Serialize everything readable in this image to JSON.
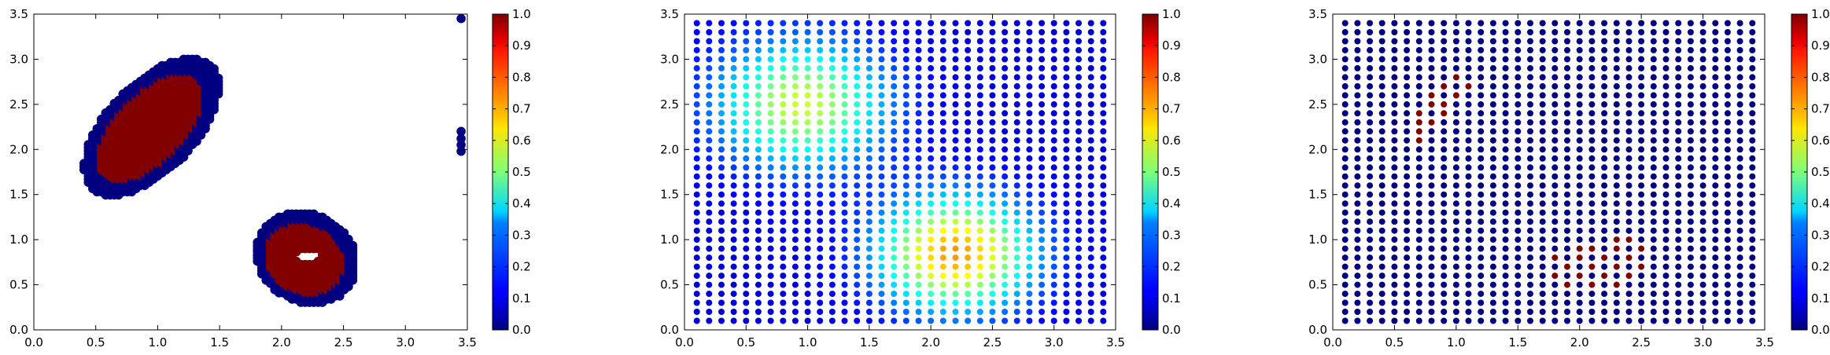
{
  "chart_data": [
    {
      "type": "scatter",
      "title": "",
      "xlabel": "",
      "ylabel": "",
      "xlim": [
        0.0,
        3.5
      ],
      "ylim": [
        0.0,
        3.5
      ],
      "xticks": [
        "0.0",
        "0.5",
        "1.0",
        "1.5",
        "2.0",
        "2.5",
        "3.0",
        "3.5"
      ],
      "yticks": [
        "0.0",
        "0.5",
        "1.0",
        "1.5",
        "2.0",
        "2.5",
        "3.0",
        "3.5"
      ],
      "colormap": "jet",
      "colorbar": {
        "min": 0.0,
        "max": 1.0,
        "ticks": [
          "0.0",
          "0.1",
          "0.2",
          "0.3",
          "0.4",
          "0.5",
          "0.6",
          "0.7",
          "0.8",
          "0.9",
          "1.0"
        ]
      },
      "grid": false,
      "series": [
        {
          "shape": "dense-cluster",
          "center": [
            0.95,
            2.25
          ],
          "extent": [
            0.4,
            0.85
          ],
          "angle_deg": 60,
          "edge_value": 0.0,
          "core_value": 1.0
        },
        {
          "shape": "dense-ring",
          "center": [
            2.2,
            0.8
          ],
          "extent": [
            0.52,
            0.4
          ],
          "angle_deg": 15,
          "hole_center": [
            2.22,
            0.82
          ],
          "hole_extent": [
            0.11,
            0.08
          ],
          "edge_value": 0.0,
          "core_value": 1.0
        },
        {
          "shape": "points",
          "x": [
            3.45,
            3.45,
            3.45,
            3.45,
            3.45
          ],
          "y": [
            3.45,
            2.2,
            2.12,
            2.05,
            1.98
          ],
          "value": 0.0
        }
      ]
    },
    {
      "type": "scatter",
      "title": "",
      "xlabel": "",
      "ylabel": "",
      "xlim": [
        0.0,
        3.5
      ],
      "ylim": [
        0.0,
        3.5
      ],
      "xticks": [
        "0.0",
        "0.5",
        "1.0",
        "1.5",
        "2.0",
        "2.5",
        "3.0",
        "3.5"
      ],
      "yticks": [
        "0.0",
        "0.5",
        "1.0",
        "1.5",
        "2.0",
        "2.5",
        "3.0",
        "3.5"
      ],
      "colormap": "jet",
      "colorbar": {
        "min": 0.0,
        "max": 1.0,
        "ticks": [
          "0.0",
          "0.1",
          "0.2",
          "0.3",
          "0.4",
          "0.5",
          "0.6",
          "0.7",
          "0.8",
          "0.9",
          "1.0"
        ]
      },
      "grid": false,
      "grid_points": {
        "x_start": 0.1,
        "y_start": 0.1,
        "step": 0.1,
        "n": 34
      },
      "value_field": {
        "type": "sum-of-gaussians",
        "background": 0.08,
        "peaks": [
          {
            "center": [
              0.95,
              2.5
            ],
            "sigma": 0.5,
            "amplitude": 0.5
          },
          {
            "center": [
              2.2,
              0.85
            ],
            "sigma": 0.45,
            "amplitude": 0.65
          }
        ]
      },
      "series": []
    },
    {
      "type": "scatter",
      "title": "",
      "xlabel": "",
      "ylabel": "",
      "xlim": [
        0.0,
        3.5
      ],
      "ylim": [
        0.0,
        3.5
      ],
      "xticks": [
        "0.0",
        "0.5",
        "1.0",
        "1.5",
        "2.0",
        "2.5",
        "3.0",
        "3.5"
      ],
      "yticks": [
        "0.0",
        "0.5",
        "1.0",
        "1.5",
        "2.0",
        "2.5",
        "3.0",
        "3.5"
      ],
      "colormap": "jet",
      "colorbar": {
        "min": 0.0,
        "max": 1.0,
        "ticks": [
          "0.0",
          "0.1",
          "0.2",
          "0.3",
          "0.4",
          "0.5",
          "0.6",
          "0.7",
          "0.8",
          "0.9",
          "1.0"
        ]
      },
      "grid": false,
      "grid_points": {
        "x_start": 0.1,
        "y_start": 0.1,
        "step": 0.1,
        "n": 34
      },
      "default_value": 0.0,
      "highlighted_points": {
        "value": 1.0,
        "points": [
          [
            1.0,
            2.8
          ],
          [
            0.9,
            2.7
          ],
          [
            1.1,
            2.7
          ],
          [
            0.8,
            2.6
          ],
          [
            1.0,
            2.6
          ],
          [
            0.8,
            2.5
          ],
          [
            0.9,
            2.5
          ],
          [
            0.7,
            2.4
          ],
          [
            0.9,
            2.4
          ],
          [
            0.7,
            2.3
          ],
          [
            0.8,
            2.3
          ],
          [
            0.7,
            2.2
          ],
          [
            0.7,
            2.1
          ],
          [
            2.3,
            1.0
          ],
          [
            2.4,
            1.0
          ],
          [
            2.0,
            0.9
          ],
          [
            2.1,
            0.9
          ],
          [
            2.3,
            0.9
          ],
          [
            2.5,
            0.9
          ],
          [
            1.8,
            0.8
          ],
          [
            2.0,
            0.8
          ],
          [
            2.2,
            0.8
          ],
          [
            2.4,
            0.8
          ],
          [
            1.9,
            0.7
          ],
          [
            2.1,
            0.7
          ],
          [
            2.3,
            0.7
          ],
          [
            2.5,
            0.7
          ],
          [
            1.8,
            0.6
          ],
          [
            2.0,
            0.6
          ],
          [
            2.2,
            0.6
          ],
          [
            2.4,
            0.6
          ],
          [
            1.9,
            0.5
          ],
          [
            2.1,
            0.5
          ],
          [
            2.3,
            0.5
          ]
        ]
      },
      "series": []
    }
  ]
}
